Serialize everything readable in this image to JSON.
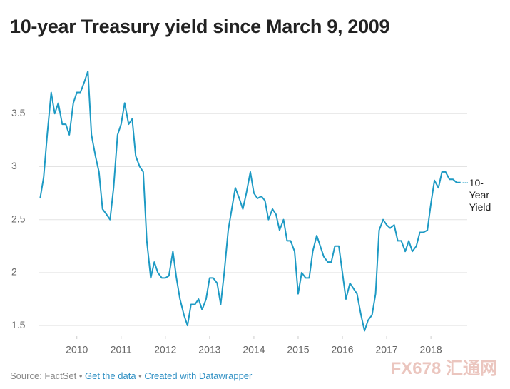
{
  "chart_data": {
    "type": "line",
    "title": "10-year Treasury yield since March 9, 2009",
    "x": [
      2009.17,
      2009.25,
      2009.33,
      2009.42,
      2009.5,
      2009.58,
      2009.67,
      2009.75,
      2009.83,
      2009.92,
      2010.0,
      2010.08,
      2010.17,
      2010.25,
      2010.33,
      2010.42,
      2010.5,
      2010.58,
      2010.67,
      2010.75,
      2010.83,
      2010.92,
      2011.0,
      2011.08,
      2011.17,
      2011.25,
      2011.33,
      2011.42,
      2011.5,
      2011.58,
      2011.67,
      2011.75,
      2011.83,
      2011.92,
      2012.0,
      2012.08,
      2012.17,
      2012.25,
      2012.33,
      2012.42,
      2012.5,
      2012.58,
      2012.67,
      2012.75,
      2012.83,
      2012.92,
      2013.0,
      2013.08,
      2013.17,
      2013.25,
      2013.33,
      2013.42,
      2013.5,
      2013.58,
      2013.67,
      2013.75,
      2013.83,
      2013.92,
      2014.0,
      2014.08,
      2014.17,
      2014.25,
      2014.33,
      2014.42,
      2014.5,
      2014.58,
      2014.67,
      2014.75,
      2014.83,
      2014.92,
      2015.0,
      2015.08,
      2015.17,
      2015.25,
      2015.33,
      2015.42,
      2015.5,
      2015.58,
      2015.67,
      2015.75,
      2015.83,
      2015.92,
      2016.0,
      2016.08,
      2016.17,
      2016.25,
      2016.33,
      2016.42,
      2016.5,
      2016.58,
      2016.67,
      2016.75,
      2016.83,
      2016.92,
      2017.0,
      2017.08,
      2017.17,
      2017.25,
      2017.33,
      2017.42,
      2017.5,
      2017.58,
      2017.67,
      2017.75,
      2017.83,
      2017.92,
      2018.0,
      2018.08,
      2018.17,
      2018.25,
      2018.33,
      2018.42,
      2018.5,
      2018.58,
      2018.67
    ],
    "series": [
      {
        "name": "10-Year Yield",
        "color": "#1d9ac4",
        "values": [
          2.7,
          2.9,
          3.3,
          3.7,
          3.5,
          3.6,
          3.4,
          3.4,
          3.3,
          3.6,
          3.7,
          3.7,
          3.8,
          3.9,
          3.3,
          3.1,
          2.95,
          2.6,
          2.55,
          2.5,
          2.8,
          3.3,
          3.4,
          3.6,
          3.4,
          3.45,
          3.1,
          3.0,
          2.95,
          2.3,
          1.95,
          2.1,
          2.0,
          1.95,
          1.95,
          1.97,
          2.2,
          1.95,
          1.75,
          1.6,
          1.5,
          1.7,
          1.7,
          1.75,
          1.65,
          1.75,
          1.95,
          1.95,
          1.9,
          1.7,
          2.0,
          2.4,
          2.6,
          2.8,
          2.7,
          2.6,
          2.75,
          2.95,
          2.75,
          2.7,
          2.72,
          2.68,
          2.5,
          2.6,
          2.55,
          2.4,
          2.5,
          2.3,
          2.3,
          2.2,
          1.8,
          2.0,
          1.95,
          1.95,
          2.2,
          2.35,
          2.25,
          2.15,
          2.1,
          2.1,
          2.25,
          2.25,
          2.0,
          1.75,
          1.9,
          1.85,
          1.8,
          1.6,
          1.45,
          1.55,
          1.6,
          1.8,
          2.4,
          2.5,
          2.45,
          2.42,
          2.45,
          2.3,
          2.3,
          2.2,
          2.3,
          2.2,
          2.25,
          2.38,
          2.38,
          2.4,
          2.65,
          2.87,
          2.8,
          2.95,
          2.95,
          2.88,
          2.88,
          2.85,
          2.85
        ]
      }
    ],
    "xlim": [
      2009.15,
      2018.82
    ],
    "xticks": [
      2010,
      2011,
      2012,
      2013,
      2014,
      2015,
      2016,
      2017,
      2018
    ],
    "ylim": [
      1.4,
      4.0
    ],
    "yticks": [
      1.5,
      2,
      2.5,
      3,
      3.5
    ],
    "grid": true,
    "source": "Source: FactSet",
    "links": [
      "Get the data",
      "Created with Datawrapper"
    ],
    "watermark": "FX678 汇通网"
  }
}
